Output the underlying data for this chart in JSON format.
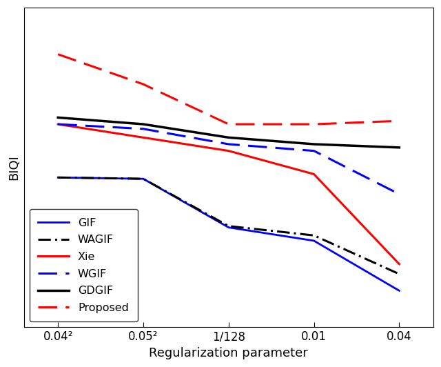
{
  "title": "",
  "xlabel": "Regularization parameter",
  "ylabel": "BIQI",
  "x_positions": [
    1,
    2,
    3,
    4,
    5
  ],
  "x_tick_labels": [
    "0.04²",
    "0.05²",
    "1/128",
    "0.01",
    "0.04"
  ],
  "lines": {
    "GIF": {
      "color": "#0000ff",
      "linestyle": "solid",
      "linewidth": 2.0,
      "y": [
        36.5,
        36.3,
        29.0,
        27.0,
        19.5
      ]
    },
    "WAGIF": {
      "color": "#000000",
      "linestyle": "dashdot",
      "linewidth": 2.2,
      "y": [
        36.5,
        36.3,
        29.2,
        27.8,
        22.0
      ]
    },
    "Xie": {
      "color": "#ff0000",
      "linestyle": "solid",
      "linewidth": 2.2,
      "y": [
        44.5,
        42.5,
        40.5,
        37.0,
        23.5
      ]
    },
    "WGIF": {
      "color": "#0000ff",
      "linestyle": "dashed",
      "linewidth": 2.2,
      "y": [
        44.5,
        43.8,
        41.5,
        40.5,
        34.0
      ]
    },
    "GDGIF": {
      "color": "#000000",
      "linestyle": "solid",
      "linewidth": 2.5,
      "y": [
        45.5,
        44.5,
        42.5,
        41.5,
        41.0
      ]
    },
    "Proposed": {
      "color": "#ff0000",
      "linestyle": "dashed",
      "linewidth": 2.2,
      "y": [
        55.0,
        50.5,
        44.5,
        44.5,
        45.0
      ]
    }
  },
  "legend_order": [
    "GIF",
    "WAGIF",
    "Xie",
    "WGIF",
    "GDGIF",
    "Proposed"
  ],
  "legend_loc": "lower left",
  "background_color": "#ffffff",
  "ylim": [
    14,
    62
  ],
  "xlim": [
    0.6,
    5.4
  ]
}
